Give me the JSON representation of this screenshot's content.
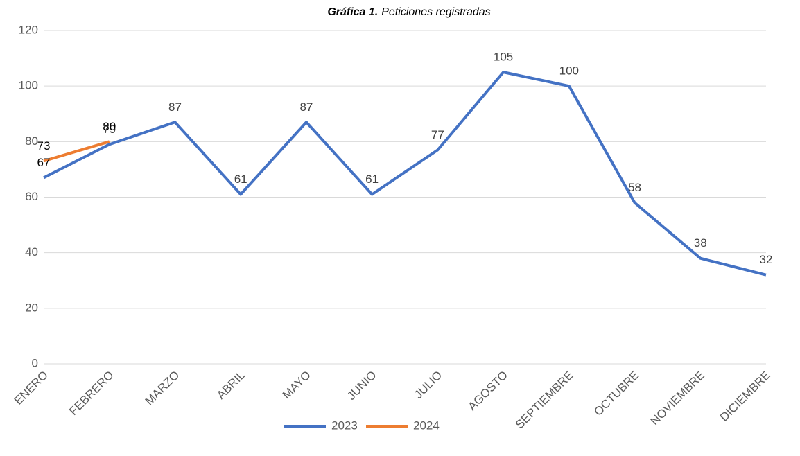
{
  "chart_data": {
    "type": "line",
    "title_prefix": "Gráfica 1.",
    "title": "Peticiones registradas",
    "categories": [
      "ENERO",
      "FEBRERO",
      "MARZO",
      "ABRIL",
      "MAYO",
      "JUNIO",
      "JULIO",
      "AGOSTO",
      "SEPTIEMBRE",
      "OCTUBRE",
      "NOVIEMBRE",
      "DICIEMBRE"
    ],
    "series": [
      {
        "name": "2023",
        "color": "#4472c4",
        "values": [
          67,
          79,
          87,
          61,
          87,
          61,
          77,
          105,
          100,
          58,
          38,
          32
        ]
      },
      {
        "name": "2024",
        "color": "#ed7d31",
        "values": [
          73,
          80,
          null,
          null,
          null,
          null,
          null,
          null,
          null,
          null,
          null,
          null
        ]
      }
    ],
    "ylim": [
      0,
      120
    ],
    "yticks": [
      0,
      20,
      40,
      60,
      80,
      100,
      120
    ],
    "grid": true,
    "legend": "bottom"
  }
}
